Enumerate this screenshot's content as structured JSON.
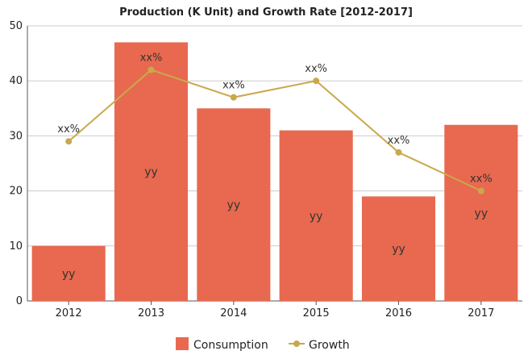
{
  "chart_data": {
    "type": "bar",
    "title": "Production (K Unit) and Growth Rate [2012-2017]",
    "categories": [
      "2012",
      "2013",
      "2014",
      "2015",
      "2016",
      "2017"
    ],
    "ylim": [
      0,
      50
    ],
    "yticks": [
      0,
      10,
      20,
      30,
      40,
      50
    ],
    "grid": true,
    "legend_position": "bottom",
    "series": [
      {
        "name": "Consumption",
        "type": "bar",
        "color": "#e8694f",
        "values": [
          10,
          47,
          35,
          31,
          19,
          32
        ],
        "labels": [
          "yy",
          "yy",
          "yy",
          "yy",
          "yy",
          "yy"
        ]
      },
      {
        "name": "Growth",
        "type": "line",
        "color": "#c9a84c",
        "values": [
          29,
          42,
          37,
          40,
          27,
          20
        ],
        "labels": [
          "xx%",
          "xx%",
          "xx%",
          "xx%",
          "xx%",
          "xx%"
        ]
      }
    ]
  }
}
